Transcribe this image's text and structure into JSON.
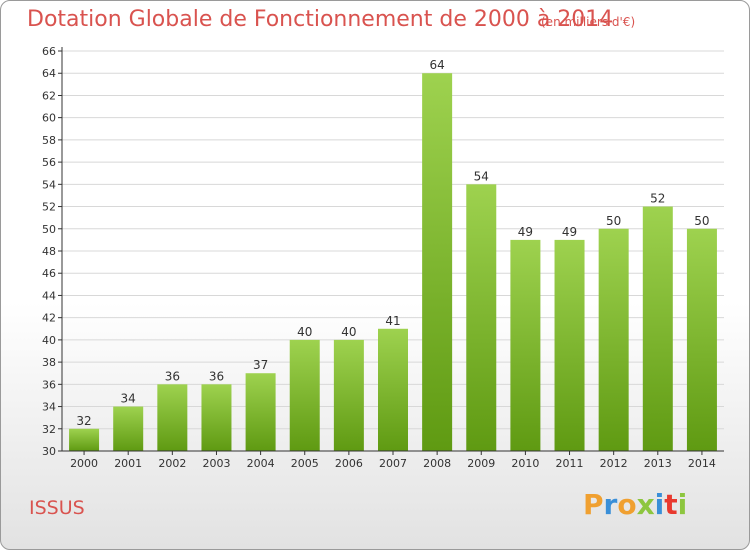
{
  "header": {
    "title": "Dotation Globale de Fonctionnement de 2000 à 2014",
    "unit_note": "(en milliers d'€)"
  },
  "footer": {
    "place_name": "ISSUS",
    "brand_name": "Proxiti",
    "brand_letter_colors": [
      "#f0a030",
      "#3a8fd8",
      "#f0a030",
      "#8dc63f",
      "#3a8fd8",
      "#e8392f",
      "#8dc63f"
    ]
  },
  "chart_data": {
    "type": "bar",
    "title": "Dotation Globale de Fonctionnement de 2000 à 2014",
    "subtitle": "(en milliers d'€)",
    "categories": [
      "2000",
      "2001",
      "2002",
      "2003",
      "2004",
      "2005",
      "2006",
      "2007",
      "2008",
      "2009",
      "2010",
      "2011",
      "2012",
      "2013",
      "2014"
    ],
    "values": [
      32,
      34,
      36,
      36,
      37,
      40,
      40,
      41,
      64,
      54,
      49,
      49,
      50,
      52,
      50
    ],
    "ylim": [
      30,
      66
    ],
    "yticks": [
      30,
      32,
      34,
      36,
      38,
      40,
      42,
      44,
      46,
      48,
      50,
      52,
      54,
      56,
      58,
      60,
      62,
      64,
      66
    ],
    "grid": true,
    "data_labels": true,
    "legend": "none",
    "colors": {
      "bar_top": "#9ed24f",
      "bar_bottom": "#5f9a12",
      "grid": "#d8d8d8",
      "axis": "#333333"
    }
  }
}
